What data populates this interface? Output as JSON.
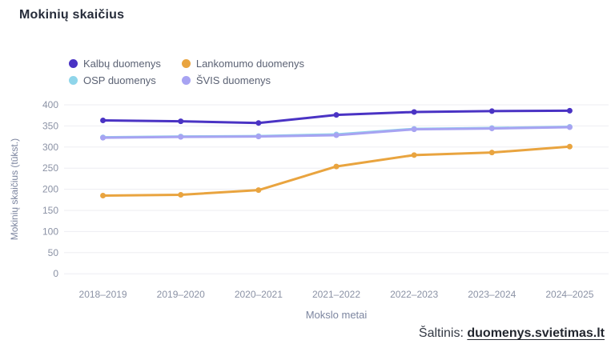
{
  "title": "Mokinių skaičius",
  "legend": [
    {
      "label": "Kalbų duomenys",
      "color": "#4a33c4"
    },
    {
      "label": "Lankomumo duomenys",
      "color": "#e9a43f"
    },
    {
      "label": "OSP duomenys",
      "color": "#8fd5ea"
    },
    {
      "label": "ŠVIS duomenys",
      "color": "#a7a3f2"
    }
  ],
  "chart_data": {
    "type": "line",
    "title": "Mokinių skaičius",
    "categories": [
      "2018–2019",
      "2019–2020",
      "2020–2021",
      "2021–2022",
      "2022–2023",
      "2023–2024",
      "2024–2025"
    ],
    "series": [
      {
        "name": "Kalbų duomenys",
        "color": "#4a33c4",
        "values": [
          363,
          361,
          357,
          376,
          383,
          385,
          386
        ]
      },
      {
        "name": "Lankomumo duomenys",
        "color": "#e9a43f",
        "values": [
          185,
          187,
          198,
          254,
          281,
          287,
          301
        ]
      },
      {
        "name": "OSP duomenys",
        "color": "#8fd5ea",
        "values": [
          323,
          325,
          326,
          330,
          343,
          345,
          348
        ]
      },
      {
        "name": "ŠVIS duomenys",
        "color": "#a7a3f2",
        "values": [
          322,
          324,
          325,
          328,
          342,
          344,
          347
        ]
      }
    ],
    "xlabel": "Mokslo metai",
    "ylabel": "Mokinių skaičius (tūkst.)",
    "ylim": [
      0,
      400
    ],
    "ytick_step": 50,
    "grid": "horizontal-only",
    "legend_position": "top-left",
    "colors": {
      "gridline": "#ededf2",
      "tick_text": "#8b92a5",
      "axis_title_text": "#7d86a0"
    }
  },
  "footer": {
    "prefix": "Šaltinis: ",
    "link_text": "duomenys.svietimas.lt"
  }
}
